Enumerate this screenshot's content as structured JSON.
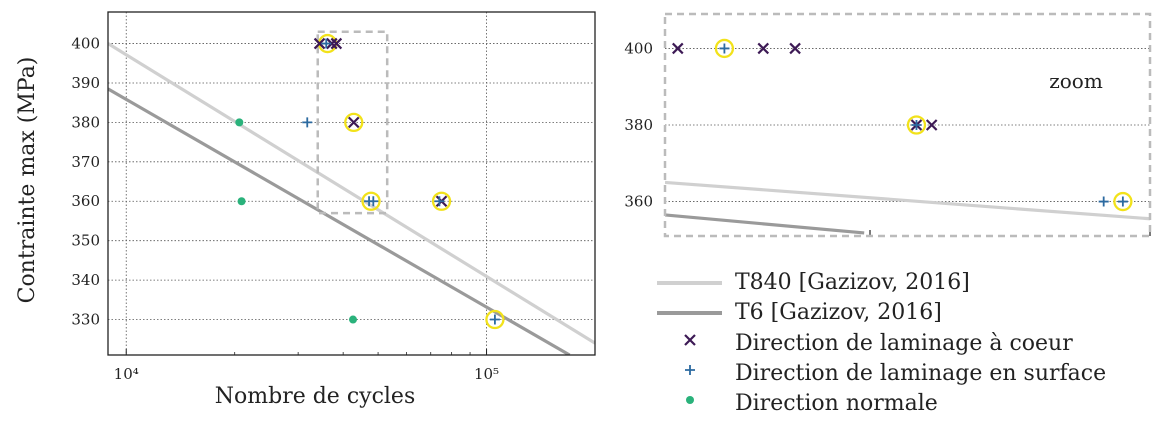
{
  "chart_data": [
    {
      "type": "scatter",
      "title": "",
      "xlabel": "Nombre de cycles",
      "ylabel": "Contrainte max (MPa)",
      "x_scale": "log",
      "xlim": [
        8900,
        200000
      ],
      "ylim": [
        321,
        408
      ],
      "x_ticks": [
        10000,
        100000
      ],
      "x_tick_labels": [
        "10⁴",
        "10⁵"
      ],
      "y_ticks": [
        330,
        340,
        350,
        360,
        370,
        380,
        390,
        400
      ],
      "y_tick_labels": [
        "330",
        "340",
        "350",
        "360",
        "370",
        "380",
        "390",
        "400"
      ],
      "grid": true,
      "lines": [
        {
          "name": "T840 [Gazizov, 2016]",
          "color": "#d0d0d0",
          "points": [
            [
              8900,
              400
            ],
            [
              200000,
              324
            ]
          ]
        },
        {
          "name": "T6 [Gazizov, 2016]",
          "color": "#9a9a9a",
          "points": [
            [
              8900,
              388.5
            ],
            [
              170000,
              321
            ]
          ]
        }
      ],
      "series": [
        {
          "name": "Direction de laminage à coeur",
          "marker": "x",
          "color": "#3d1a55",
          "points": [
            [
              34400,
              400
            ],
            [
              37200,
              400
            ],
            [
              38300,
              400
            ],
            [
              42800,
              380
            ],
            [
              75000,
              360
            ]
          ]
        },
        {
          "name": "Direction de laminage en surface",
          "marker": "+",
          "color": "#2c6aa0",
          "points": [
            [
              35900,
              400
            ],
            [
              31800,
              380
            ],
            [
              47200,
              360
            ],
            [
              48500,
              360
            ],
            [
              74000,
              360
            ],
            [
              105500,
              330
            ]
          ]
        },
        {
          "name": "Direction normale",
          "marker": "dot",
          "color": "#2ab27b",
          "points": [
            [
              20600,
              380
            ],
            [
              20900,
              360
            ],
            [
              42600,
              330
            ]
          ]
        }
      ],
      "highlighted": [
        [
          36200,
          400
        ],
        [
          42800,
          380
        ],
        [
          47800,
          360
        ],
        [
          75000,
          360
        ],
        [
          105500,
          330
        ]
      ],
      "zoom_box": {
        "x": [
          34000,
          53000
        ],
        "y": [
          357,
          403
        ]
      }
    },
    {
      "type": "scatter",
      "title": "",
      "annotation": "zoom",
      "x_scale": "log",
      "xlim": [
        34000,
        53000
      ],
      "ylim": [
        351,
        409
      ],
      "y_ticks": [
        360,
        380,
        400
      ],
      "y_tick_labels": [
        "360",
        "380",
        "400"
      ],
      "grid": true,
      "lines": [
        {
          "name": "T840 [Gazizov, 2016]",
          "color": "#d0d0d0",
          "points": [
            [
              34000,
              365
            ],
            [
              53000,
              355.5
            ]
          ]
        },
        {
          "name": "T6 [Gazizov, 2016]",
          "color": "#9a9a9a",
          "points": [
            [
              34000,
              356.5
            ],
            [
              40800,
              351.8
            ]
          ]
        }
      ],
      "series": [
        {
          "name": "Direction de laminage à coeur",
          "marker": "x",
          "color": "#3d1a55",
          "points": [
            [
              34400,
              400
            ],
            [
              37200,
              400
            ],
            [
              38300,
              400
            ],
            [
              42800,
              380
            ],
            [
              43400,
              380
            ]
          ]
        },
        {
          "name": "Direction de laminage en surface",
          "marker": "+",
          "color": "#2c6aa0",
          "points": [
            [
              35900,
              400
            ],
            [
              42800,
              380
            ],
            [
              50800,
              360
            ],
            [
              51700,
              360
            ]
          ]
        }
      ],
      "highlighted": [
        [
          35900,
          400
        ],
        [
          42800,
          380
        ],
        [
          51700,
          360
        ]
      ]
    }
  ],
  "legend": {
    "entries": [
      {
        "label": "T840 [Gazizov, 2016]",
        "symbol": "line",
        "color": "#d0d0d0"
      },
      {
        "label": "T6 [Gazizov, 2016]",
        "symbol": "line",
        "color": "#9a9a9a"
      },
      {
        "label": "Direction de laminage à coeur",
        "symbol": "x",
        "color": "#3d1a55"
      },
      {
        "label": "Direction de laminage en surface",
        "symbol": "+",
        "color": "#2c6aa0"
      },
      {
        "label": "Direction normale",
        "symbol": "dot",
        "color": "#2ab27b"
      }
    ]
  },
  "colors": {
    "highlight_ring": "#f2e21a",
    "zoom_box": "#bbbbbb",
    "grid": "#555555"
  }
}
